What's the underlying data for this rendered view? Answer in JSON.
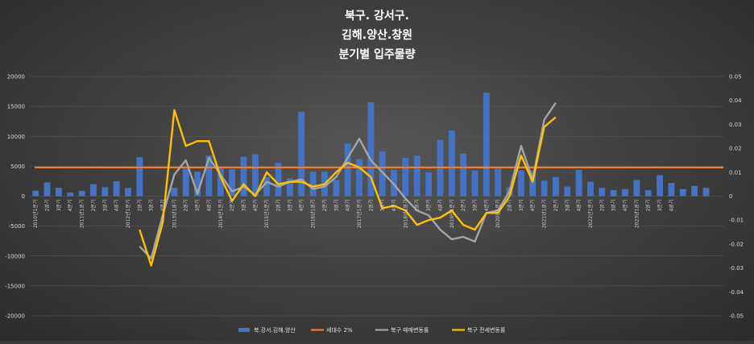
{
  "chart_data": {
    "type": "bar",
    "title_lines": [
      "북구. 강서구.",
      "김해.양산.창원",
      "분기별 입주물량"
    ],
    "categories": [
      "2010년1분기",
      "2분기",
      "3분기",
      "4분기",
      "2011년1분기",
      "2분기",
      "3분기",
      "4분기",
      "2012년1분기",
      "2분기",
      "3분기",
      "4분기",
      "2013년1분기",
      "2분기",
      "3분기",
      "4분기",
      "2014년1분기",
      "2분기",
      "3분기",
      "4분기",
      "2015년1분기",
      "2분기",
      "3분기",
      "4분기",
      "2016년1분기",
      "2분기",
      "3분기",
      "4분기",
      "2017년1분기",
      "2분기",
      "3분기",
      "4분기",
      "2018년1분기",
      "2분기",
      "3분기",
      "4분기",
      "2019년1분기",
      "2분기",
      "3분기",
      "4분기",
      "2020년1분기",
      "2분기",
      "3분기",
      "4분기",
      "2021년1분기",
      "2분기",
      "3분기",
      "4분기",
      "2022년1분기",
      "2분기",
      "3분기",
      "4분기",
      "2023년1분기",
      "2분기",
      "3분기",
      "4분기",
      "",
      "",
      "",
      ""
    ],
    "y_left": {
      "min": -20000,
      "max": 20000,
      "step": 5000,
      "ticks": [
        "20000",
        "15000",
        "10000",
        "5000",
        "0",
        "-5000",
        "-10000",
        "-15000",
        "-20000"
      ]
    },
    "y_right": {
      "min": -0.05,
      "max": 0.05,
      "step": 0.01,
      "ticks": [
        "0.05",
        "0.04",
        "0.03",
        "0.02",
        "0.01",
        "0",
        "-0.01",
        "-0.02",
        "-0.03",
        "-0.04",
        "-0.05"
      ]
    },
    "series": [
      {
        "name": "북.강서.김해.양산",
        "kind": "bar",
        "axis": "left",
        "color": "#4472c4",
        "values": [
          900,
          2300,
          1400,
          600,
          900,
          2000,
          1500,
          2500,
          1400,
          6500,
          0,
          0,
          1400,
          4600,
          4100,
          6800,
          4700,
          4500,
          6600,
          7000,
          3200,
          5600,
          3000,
          14100,
          4100,
          4100,
          2700,
          8800,
          6200,
          15700,
          7500,
          4400,
          6400,
          6800,
          4000,
          9400,
          11000,
          7100,
          4300,
          17300,
          4600,
          1500,
          4300,
          4300,
          2600,
          3200,
          1600,
          4400,
          2400,
          1400,
          1000,
          1200,
          2700,
          1000,
          3500,
          2200,
          1200,
          1700,
          1400,
          0
        ]
      },
      {
        "name": "세대수 2%",
        "kind": "line",
        "axis": "left",
        "color": "#ed7d31",
        "values": [
          4800,
          4800,
          4800,
          4800,
          4800,
          4800,
          4800,
          4800,
          4800,
          4800,
          4800,
          4800,
          4800,
          4800,
          4800,
          4800,
          4800,
          4800,
          4800,
          4800,
          4800,
          4800,
          4800,
          4800,
          4800,
          4800,
          4800,
          4800,
          4800,
          4800,
          4800,
          4800,
          4800,
          4800,
          4800,
          4800,
          4800,
          4800,
          4800,
          4800,
          4800,
          4800,
          4800,
          4800,
          4800,
          4800,
          4800,
          4800,
          4800,
          4800,
          4800,
          4800,
          4800,
          4800,
          4800,
          4800,
          4800,
          4800,
          4800,
          4800
        ]
      },
      {
        "name": "북구 매매변동률",
        "kind": "line",
        "axis": "right",
        "color": "#a5a5a5",
        "values": [
          null,
          null,
          null,
          null,
          null,
          null,
          null,
          null,
          null,
          -0.021,
          -0.026,
          -0.008,
          0.009,
          0.015,
          0.001,
          0.016,
          0.009,
          0.002,
          0.004,
          0.0005,
          0.006,
          0.004,
          0.006,
          0.007,
          0.003,
          0.004,
          0.008,
          0.016,
          0.024,
          0.015,
          0.01,
          0.005,
          -0.001,
          -0.006,
          -0.008,
          -0.014,
          -0.018,
          -0.017,
          -0.019,
          -0.007,
          -0.006,
          0.002,
          0.021,
          0.007,
          0.032,
          0.039,
          null,
          null,
          null,
          null,
          null,
          null,
          null,
          null,
          null,
          null,
          null,
          null,
          null,
          null
        ]
      },
      {
        "name": "북구 전세변동률",
        "kind": "line",
        "axis": "right",
        "color": "#ffc000",
        "values": [
          null,
          null,
          null,
          null,
          null,
          null,
          null,
          null,
          null,
          -0.014,
          -0.029,
          -0.011,
          0.036,
          0.021,
          0.023,
          0.023,
          0.008,
          -0.002,
          0.005,
          0.0,
          0.01,
          0.005,
          0.006,
          0.006,
          0.004,
          0.005,
          0.01,
          0.014,
          0.012,
          0.008,
          -0.005,
          -0.004,
          -0.006,
          -0.012,
          -0.01,
          -0.009,
          -0.006,
          -0.012,
          -0.014,
          -0.007,
          -0.007,
          0.0,
          0.017,
          0.006,
          0.029,
          0.033,
          null,
          null,
          null,
          null,
          null,
          null,
          null,
          null,
          null,
          null,
          null,
          null,
          null,
          null
        ]
      }
    ],
    "grid": true,
    "legend_position": "bottom"
  }
}
